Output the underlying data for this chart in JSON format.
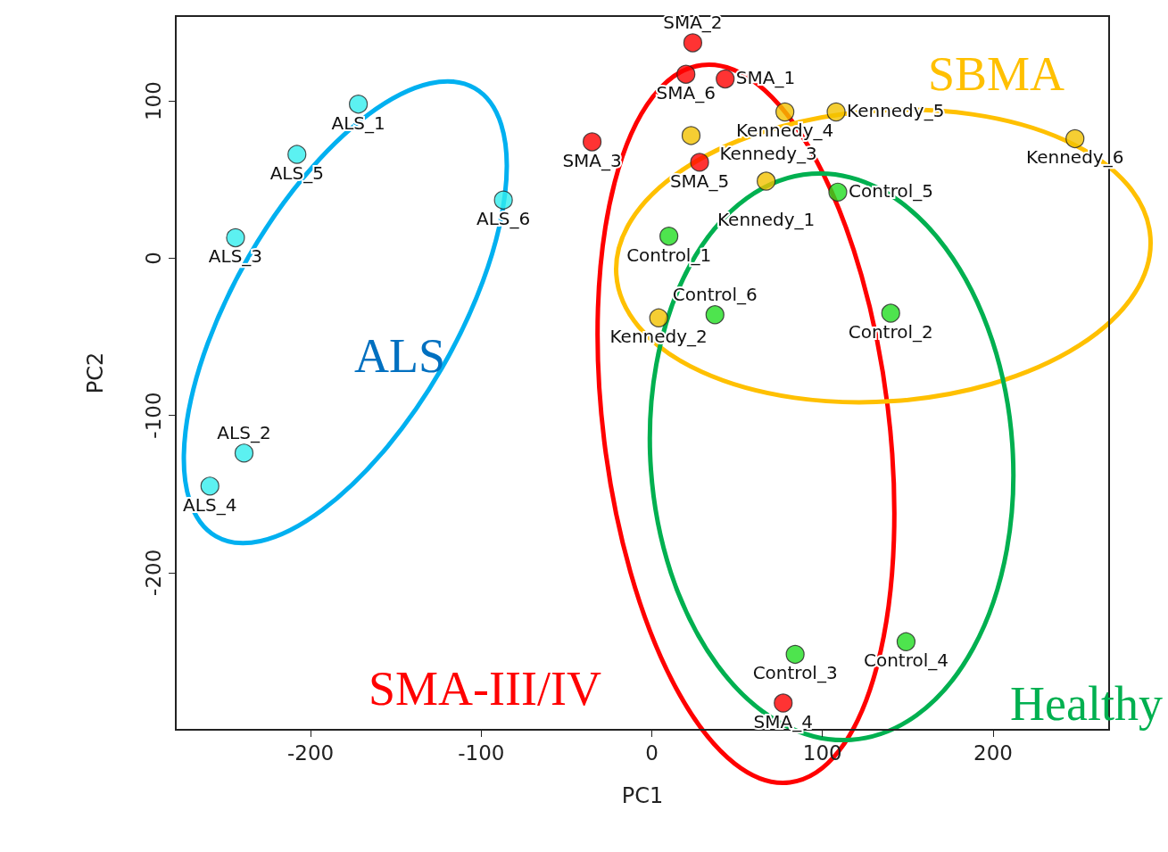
{
  "chart_data": {
    "type": "scatter",
    "xlabel": "PC1",
    "ylabel": "PC2",
    "xlim": [
      -279,
      268
    ],
    "ylim": [
      -300,
      154
    ],
    "xticks": [
      -200,
      -100,
      0,
      100,
      200
    ],
    "yticks": [
      -200,
      -100,
      0,
      100
    ],
    "marker": "circle",
    "annotations": [
      "ALS",
      "SMA-III/IV",
      "SBMA",
      "Healthy",
      {
        "text": "ALS_1",
        "x": -172,
        "y": 98
      },
      {
        "text": "ALS_5",
        "x": -208,
        "y": 66
      },
      {
        "text": "ALS_6",
        "x": -87,
        "y": 37
      },
      {
        "text": "ALS_3",
        "x": -244,
        "y": 13
      },
      {
        "text": "ALS_2",
        "x": -239,
        "y": -124
      },
      {
        "text": "ALS_4",
        "x": -259,
        "y": -145
      },
      {
        "text": "SMA_2",
        "x": 24,
        "y": 137
      },
      {
        "text": "SMA_6",
        "x": 20,
        "y": 117
      },
      {
        "text": "SMA_1",
        "x": 43,
        "y": 114
      },
      {
        "text": "SMA_3",
        "x": -35,
        "y": 74
      },
      {
        "text": "SMA_5",
        "x": 28,
        "y": 61
      },
      {
        "text": "SMA_4",
        "x": 77,
        "y": -283
      },
      {
        "text": "Kennedy_4",
        "x": 78,
        "y": 93
      },
      {
        "text": "Kennedy_5",
        "x": 108,
        "y": 93
      },
      {
        "text": "Kennedy_3",
        "x": 23,
        "y": 78
      },
      {
        "text": "Kennedy_6",
        "x": 248,
        "y": 76
      },
      {
        "text": "Kennedy_1",
        "x": 67,
        "y": 49
      },
      {
        "text": "Kennedy_2",
        "x": 4,
        "y": -38
      },
      {
        "text": "Control_1",
        "x": 10,
        "y": 14
      },
      {
        "text": "Control_5",
        "x": 109,
        "y": 42
      },
      {
        "text": "Control_6",
        "x": 37,
        "y": -36
      },
      {
        "text": "Control_2",
        "x": 140,
        "y": -35
      },
      {
        "text": "Control_3",
        "x": 84,
        "y": -252
      },
      {
        "text": "Control_4",
        "x": 149,
        "y": -244
      }
    ],
    "series": [
      {
        "color": "#33eeee",
        "x": [
          -172,
          -208,
          -87,
          -244,
          -239,
          -259
        ],
        "values": [
          98,
          66,
          37,
          13,
          -124,
          -145
        ]
      },
      {
        "color": "#ff0000",
        "x": [
          24,
          20,
          43,
          -35,
          28,
          77
        ],
        "values": [
          137,
          117,
          114,
          74,
          61,
          -283
        ]
      },
      {
        "color": "#f2c200",
        "x": [
          78,
          108,
          23,
          248,
          67,
          4
        ],
        "values": [
          93,
          93,
          78,
          76,
          49,
          -38
        ]
      },
      {
        "color": "#22dd22",
        "x": [
          10,
          109,
          37,
          140,
          84,
          149
        ],
        "values": [
          14,
          42,
          -36,
          -35,
          -252,
          -244
        ]
      }
    ]
  }
}
